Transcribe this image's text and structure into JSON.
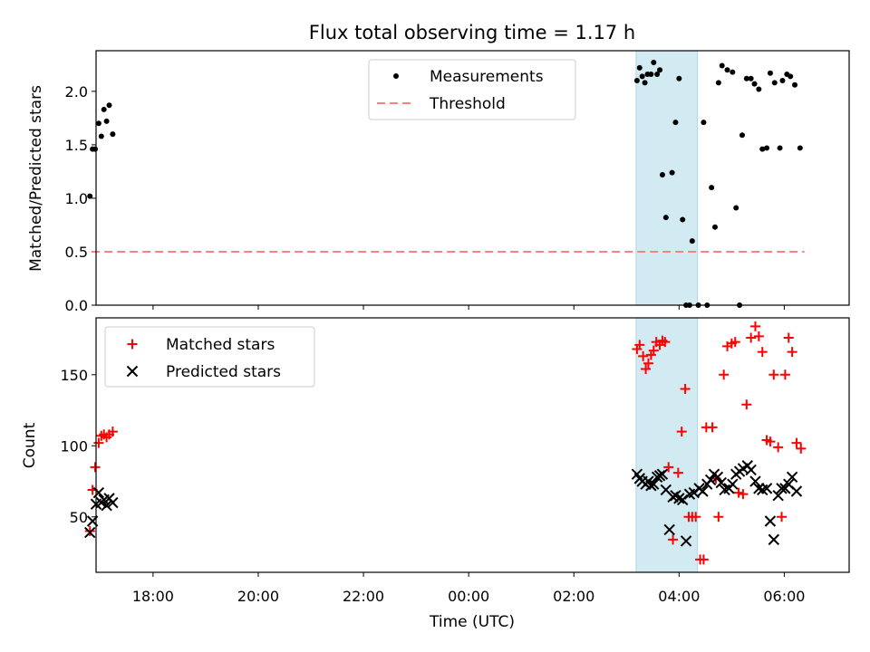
{
  "figure": {
    "title": "Flux total observing time = 1.17 h",
    "xlabel": "Time (UTC)"
  },
  "colors": {
    "measurements": "#000000",
    "threshold": "#ff8080",
    "matched": "#ff0000",
    "predicted": "#000000",
    "shade": "#add8e6"
  },
  "chart_data": [
    {
      "type": "scatter",
      "panel": "top",
      "ylabel": "Matched/Predicted stars",
      "ylim": [
        0,
        2.38
      ],
      "yticks": [
        "0.0",
        "0.5",
        "1.0",
        "1.5",
        "2.0"
      ],
      "xlim": [
        "16:55",
        "07:14"
      ],
      "xticks": [
        "18:00",
        "20:00",
        "22:00",
        "00:00",
        "02:00",
        "04:00",
        "06:00"
      ],
      "shaded_span": [
        "03:11",
        "04:21"
      ],
      "legend": {
        "position": "top-center",
        "entries": [
          "Measurements",
          "Threshold"
        ]
      },
      "threshold": {
        "name": "Threshold",
        "value": 0.5,
        "x": [
          "16:50",
          "06:23"
        ]
      },
      "series": [
        {
          "name": "Measurements",
          "x": [
            "16:48",
            "16:51",
            "16:54",
            "16:58",
            "17:01",
            "17:04",
            "17:07",
            "17:10",
            "17:14",
            "03:12",
            "03:15",
            "03:18",
            "03:21",
            "03:24",
            "03:28",
            "03:31",
            "03:35",
            "03:38",
            "03:41",
            "03:45",
            "03:52",
            "03:56",
            "04:00",
            "04:04",
            "04:08",
            "04:12",
            "04:15",
            "04:22",
            "04:28",
            "04:32",
            "04:37",
            "04:41",
            "04:45",
            "04:49",
            "04:55",
            "05:01",
            "05:05",
            "05:09",
            "05:12",
            "05:17",
            "05:22",
            "05:26",
            "05:31",
            "05:35",
            "05:40",
            "05:44",
            "05:49",
            "05:55",
            "05:58",
            "06:03",
            "06:07",
            "06:12",
            "06:18"
          ],
          "values": [
            1.02,
            1.46,
            1.46,
            1.7,
            1.58,
            1.83,
            1.72,
            1.87,
            1.6,
            2.1,
            2.22,
            2.14,
            2.08,
            2.16,
            2.16,
            2.27,
            2.16,
            2.2,
            1.22,
            0.82,
            1.24,
            1.71,
            2.12,
            0.8,
            0.0,
            0.0,
            0.6,
            0.0,
            1.71,
            0.0,
            1.1,
            0.73,
            2.08,
            2.24,
            2.2,
            2.18,
            0.91,
            0.0,
            1.59,
            2.12,
            2.12,
            2.07,
            2.02,
            1.46,
            1.47,
            2.17,
            2.08,
            1.47,
            2.1,
            2.16,
            2.14,
            2.06,
            1.47
          ]
        }
      ]
    },
    {
      "type": "scatter",
      "panel": "bottom",
      "ylabel": "Count",
      "ylim": [
        11,
        190
      ],
      "yticks": [
        "50",
        "100",
        "150"
      ],
      "xlim": [
        "16:55",
        "07:14"
      ],
      "xticks": [
        "18:00",
        "20:00",
        "22:00",
        "00:00",
        "02:00",
        "04:00",
        "06:00"
      ],
      "shaded_span": [
        "03:11",
        "04:21"
      ],
      "legend": {
        "position": "top-left",
        "entries": [
          "Matched stars",
          "Predicted stars"
        ]
      },
      "series": [
        {
          "name": "Matched stars",
          "x": [
            "16:48",
            "16:51",
            "16:54",
            "16:58",
            "17:01",
            "17:04",
            "17:07",
            "17:10",
            "17:14",
            "03:12",
            "03:15",
            "03:19",
            "03:22",
            "03:25",
            "03:28",
            "03:31",
            "03:34",
            "03:38",
            "03:41",
            "03:44",
            "03:48",
            "03:53",
            "03:59",
            "04:03",
            "04:07",
            "04:11",
            "04:15",
            "04:19",
            "04:24",
            "04:28",
            "04:31",
            "04:38",
            "04:42",
            "04:45",
            "04:51",
            "04:55",
            "05:00",
            "05:04",
            "05:08",
            "05:13",
            "05:17",
            "05:22",
            "05:27",
            "05:31",
            "05:35",
            "05:40",
            "05:44",
            "05:48",
            "05:53",
            "05:57",
            "06:01",
            "06:05",
            "06:09",
            "06:14",
            "06:19"
          ],
          "values": [
            40,
            69,
            85,
            102,
            107,
            108,
            106,
            108,
            110,
            168,
            171,
            163,
            154,
            158,
            164,
            167,
            173,
            171,
            174,
            173,
            85,
            34,
            81,
            110,
            140,
            50,
            50,
            50,
            20,
            20,
            113,
            113,
            77,
            50,
            150,
            170,
            172,
            173,
            67,
            66,
            129,
            176,
            184,
            177,
            166,
            104,
            103,
            150,
            99,
            50,
            150,
            176,
            166,
            102,
            98
          ]
        },
        {
          "name": "Predicted stars",
          "x": [
            "16:48",
            "16:51",
            "16:55",
            "16:58",
            "17:01",
            "17:04",
            "17:07",
            "17:10",
            "17:14",
            "03:12",
            "03:15",
            "03:18",
            "03:22",
            "03:25",
            "03:28",
            "03:31",
            "03:35",
            "03:38",
            "03:41",
            "03:45",
            "03:49",
            "03:53",
            "03:56",
            "04:00",
            "04:04",
            "04:08",
            "04:12",
            "04:17",
            "04:23",
            "04:27",
            "04:32",
            "04:36",
            "04:40",
            "04:44",
            "04:48",
            "04:52",
            "04:57",
            "05:01",
            "05:05",
            "05:09",
            "05:13",
            "05:18",
            "05:22",
            "05:27",
            "05:31",
            "05:35",
            "05:40",
            "05:44",
            "05:48",
            "05:53",
            "05:57",
            "06:01",
            "06:05",
            "06:09",
            "06:14"
          ],
          "values": [
            39,
            47,
            59,
            67,
            60,
            62,
            58,
            63,
            60,
            80,
            77,
            75,
            73,
            75,
            72,
            73,
            78,
            79,
            80,
            69,
            41,
            64,
            65,
            63,
            62,
            33,
            66,
            67,
            70,
            68,
            73,
            76,
            80,
            78,
            74,
            69,
            70,
            73,
            80,
            82,
            84,
            86,
            83,
            75,
            70,
            69,
            70,
            47,
            34,
            65,
            70,
            70,
            73,
            78,
            68
          ]
        }
      ]
    }
  ]
}
